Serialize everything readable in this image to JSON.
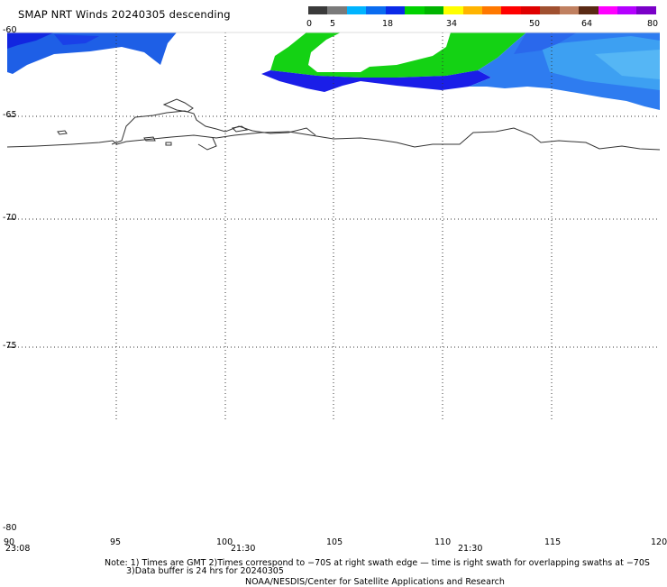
{
  "title": "SMAP NRT Winds  20240305 descending",
  "colorbar": {
    "ticks": [
      "0",
      "5",
      "18",
      "34",
      "50",
      "64",
      "80"
    ],
    "segments": [
      {
        "color": "#3a3a3a"
      },
      {
        "color": "#7a7a7a"
      },
      {
        "color": "#00b4ff"
      },
      {
        "color": "#0a6cf0"
      },
      {
        "color": "#0a2ae8"
      },
      {
        "color": "#00d200"
      },
      {
        "color": "#00b400"
      },
      {
        "color": "#ffff00"
      },
      {
        "color": "#ffb400"
      },
      {
        "color": "#ff7800"
      },
      {
        "color": "#ff0000"
      },
      {
        "color": "#e00000"
      },
      {
        "color": "#a05030"
      },
      {
        "color": "#c08060"
      },
      {
        "color": "#5a2a14"
      },
      {
        "color": "#ff00ff"
      },
      {
        "color": "#b400ff"
      },
      {
        "color": "#7a00c8"
      }
    ]
  },
  "lat_labels": [
    "-60",
    "-65",
    "-70",
    "-75",
    "-80"
  ],
  "lon_labels": [
    "90",
    "95",
    "100",
    "105",
    "110",
    "115",
    "120"
  ],
  "times": [
    "23:08",
    "21:30",
    "21:30"
  ],
  "note": {
    "line1": "Note: 1) Times are GMT 2)Times correspond to −70S at right swath edge — time is right swath for overlapping swaths at −70S",
    "line2": "3)Data buffer is 24 hrs for 20240305",
    "line3": "NOAA/NESDIS/Center for Satellite Applications and Research"
  }
}
